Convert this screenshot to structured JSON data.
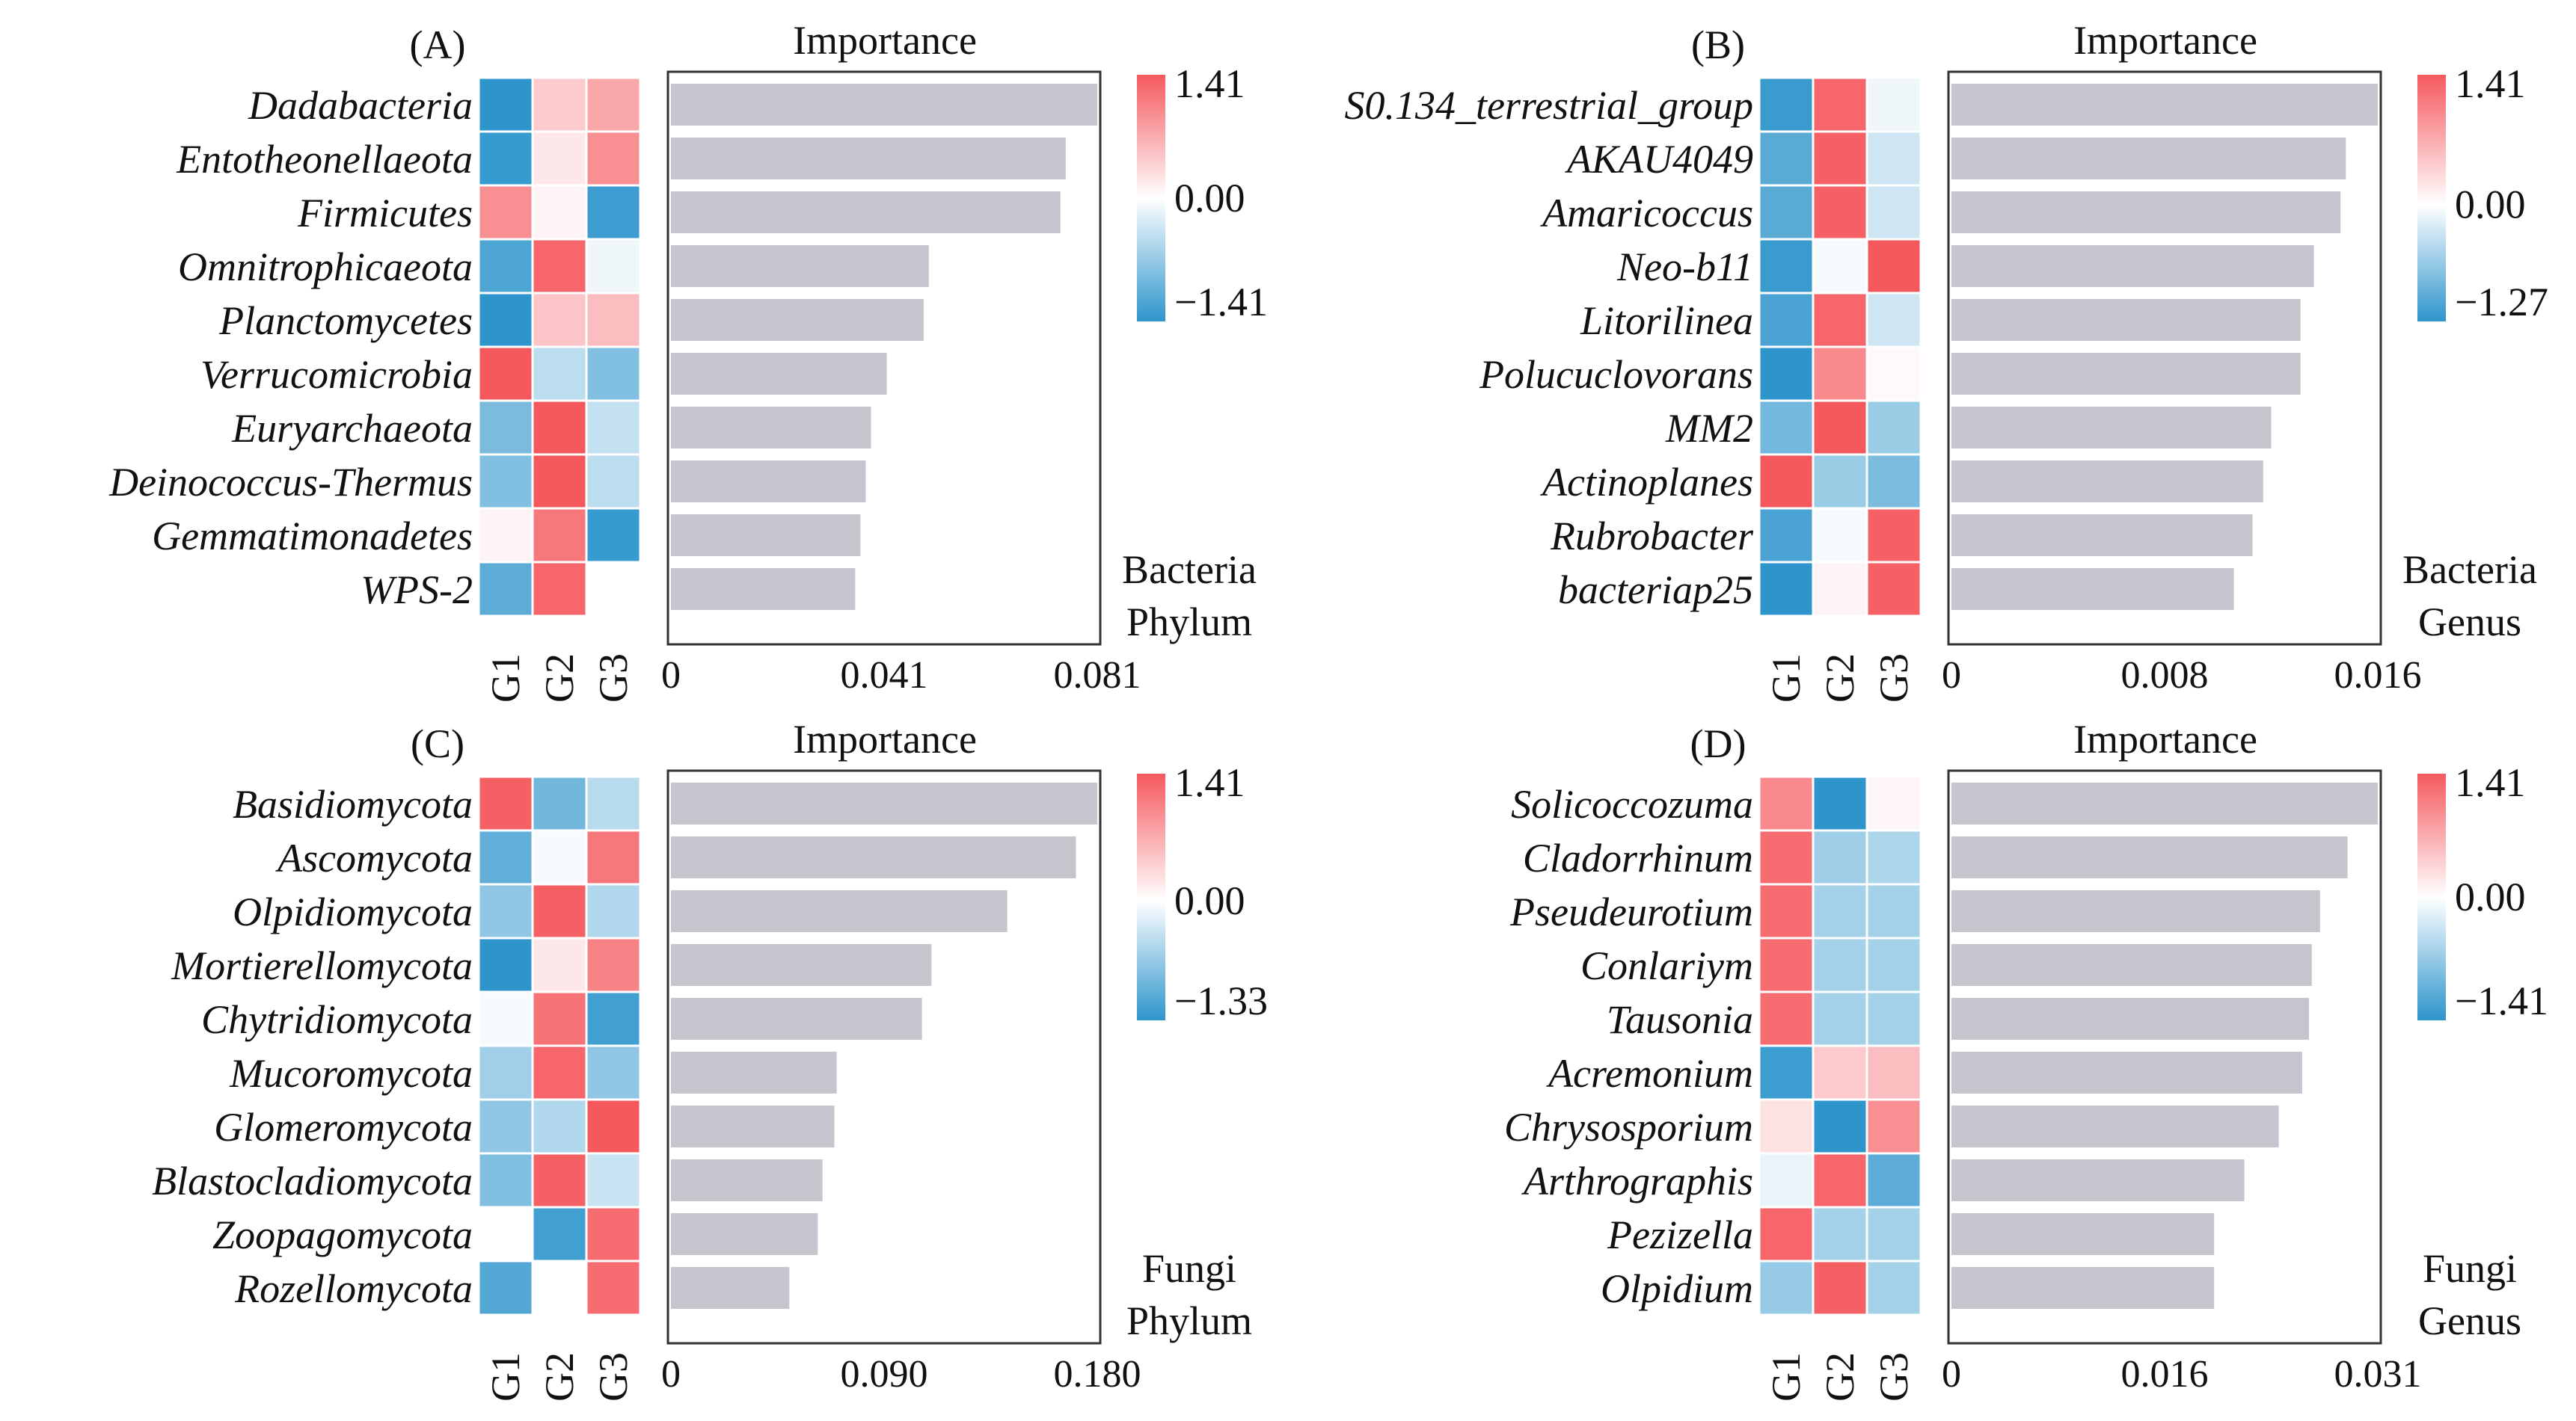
{
  "colors": {
    "bar": "#c5c5ce",
    "heat_high": "#f5595e",
    "heat_mid": "#ffffff",
    "heat_low": "#2e95cc",
    "frame": "#333333",
    "text": "#111111"
  },
  "groups": [
    "G1",
    "G2",
    "G3"
  ],
  "chart_data": [
    {
      "panel": "(A)",
      "type": "bar",
      "orientation": "horizontal",
      "title": "Importance",
      "caption": [
        "Bacteria",
        "Phylum"
      ],
      "categories": [
        "Dadabacteria",
        "Entotheonellaeota",
        "Firmicutes",
        "Omnitrophicaeota",
        "Planctomycetes",
        "Verrucomicrobia",
        "Euryarchaeota",
        "Deinococcus-Thermus",
        "Gemmatimonadetes",
        "WPS-2"
      ],
      "values": [
        0.081,
        0.075,
        0.074,
        0.049,
        0.048,
        0.041,
        0.038,
        0.037,
        0.036,
        0.035
      ],
      "xlim": [
        0,
        0.081
      ],
      "xticks": [
        "0",
        "0.041",
        "0.081"
      ],
      "heatmap": {
        "columns": [
          "G1",
          "G2",
          "G3"
        ],
        "rows": [
          [
            -1.41,
            0.45,
            0.75
          ],
          [
            -1.35,
            0.2,
            0.95
          ],
          [
            0.95,
            0.1,
            -1.3
          ],
          [
            -1.2,
            1.3,
            -0.1
          ],
          [
            -1.41,
            0.5,
            0.55
          ],
          [
            1.41,
            -0.45,
            -0.85
          ],
          [
            -0.9,
            1.41,
            -0.4
          ],
          [
            -0.85,
            1.41,
            -0.45
          ],
          [
            0.1,
            1.15,
            -1.35
          ],
          [
            -1.1,
            1.3,
            0.0
          ]
        ],
        "scale": {
          "max": 1.41,
          "mid": 0.0,
          "min": -1.41
        },
        "scale_labels": [
          "1.41",
          "0.00",
          "−1.41"
        ]
      }
    },
    {
      "panel": "(B)",
      "type": "bar",
      "orientation": "horizontal",
      "title": "Importance",
      "caption": [
        "Bacteria",
        "Genus"
      ],
      "categories": [
        "S0.134_terrestrial_group",
        "AKAU4049",
        "Amaricoccus",
        "Neo-b11",
        "Litorilinea",
        "Polucuclovorans",
        "MM2",
        "Actinoplanes",
        "Rubrobacter",
        "bacteriap25"
      ],
      "values": [
        0.016,
        0.0148,
        0.0146,
        0.0136,
        0.0131,
        0.0131,
        0.012,
        0.0117,
        0.0113,
        0.0106
      ],
      "xlim": [
        0,
        0.016
      ],
      "xticks": [
        "0",
        "0.008",
        "0.016"
      ],
      "heatmap": {
        "columns": [
          "G1",
          "G2",
          "G3"
        ],
        "rows": [
          [
            -1.2,
            1.3,
            -0.1
          ],
          [
            -1.0,
            1.35,
            -0.3
          ],
          [
            -1.0,
            1.35,
            -0.3
          ],
          [
            -1.2,
            -0.05,
            1.41
          ],
          [
            -1.1,
            1.3,
            -0.3
          ],
          [
            -1.27,
            1.0,
            0.05
          ],
          [
            -0.85,
            1.41,
            -0.6
          ],
          [
            1.41,
            -0.6,
            -0.8
          ],
          [
            -1.1,
            -0.05,
            1.35
          ],
          [
            -1.27,
            0.1,
            1.35
          ]
        ],
        "scale": {
          "max": 1.41,
          "mid": 0.0,
          "min": -1.27
        },
        "scale_labels": [
          "1.41",
          "0.00",
          "−1.27"
        ]
      }
    },
    {
      "panel": "(C)",
      "type": "bar",
      "orientation": "horizontal",
      "title": "Importance",
      "caption": [
        "Fungi",
        "Phylum"
      ],
      "categories": [
        "Basidiomycota",
        "Ascomycota",
        "Olpidiomycota",
        "Mortierellomycota",
        "Chytridiomycota",
        "Mucoromycota",
        "Glomeromycota",
        "Blastocladiomycota",
        "Zoopagomycota",
        "Rozellomycota"
      ],
      "values": [
        0.18,
        0.171,
        0.142,
        0.11,
        0.106,
        0.07,
        0.069,
        0.064,
        0.062,
        0.05
      ],
      "xlim": [
        0,
        0.18
      ],
      "xticks": [
        "0",
        "0.090",
        "0.180"
      ],
      "heatmap": {
        "columns": [
          "G1",
          "G2",
          "G3"
        ],
        "rows": [
          [
            1.35,
            -0.9,
            -0.45
          ],
          [
            -1.0,
            -0.05,
            1.15
          ],
          [
            -0.7,
            1.35,
            -0.5
          ],
          [
            -1.33,
            0.2,
            1.05
          ],
          [
            -0.05,
            1.2,
            -1.2
          ],
          [
            -0.6,
            1.3,
            -0.7
          ],
          [
            -0.7,
            -0.5,
            1.41
          ],
          [
            -0.8,
            1.35,
            -0.35
          ],
          [
            0.0,
            -1.2,
            1.25
          ],
          [
            -1.1,
            0.0,
            1.25
          ]
        ],
        "scale": {
          "max": 1.41,
          "mid": 0.0,
          "min": -1.33
        },
        "scale_labels": [
          "1.41",
          "0.00",
          "−1.33"
        ]
      }
    },
    {
      "panel": "(D)",
      "type": "bar",
      "orientation": "horizontal",
      "title": "Importance",
      "caption": [
        "Fungi",
        "Genus"
      ],
      "categories": [
        "Solicoccozuma",
        "Cladorrhinum",
        "Pseudeurotium",
        "Conlariym",
        "Tausonia",
        "Acremonium",
        "Chrysosporium",
        "Arthrographis",
        "Pezizella",
        "Olpidium"
      ],
      "values": [
        0.031,
        0.0288,
        0.0268,
        0.0262,
        0.026,
        0.0255,
        0.0238,
        0.0213,
        0.0191,
        0.0191
      ],
      "xlim": [
        0,
        0.031
      ],
      "xticks": [
        "0",
        "0.016",
        "0.031"
      ],
      "heatmap": {
        "columns": [
          "G1",
          "G2",
          "G3"
        ],
        "rows": [
          [
            1.0,
            -1.41,
            0.08
          ],
          [
            1.25,
            -0.65,
            -0.55
          ],
          [
            1.25,
            -0.6,
            -0.6
          ],
          [
            1.25,
            -0.6,
            -0.6
          ],
          [
            1.25,
            -0.6,
            -0.6
          ],
          [
            -1.3,
            0.45,
            0.55
          ],
          [
            0.25,
            -1.41,
            0.95
          ],
          [
            -0.15,
            1.3,
            -1.1
          ],
          [
            1.3,
            -0.6,
            -0.6
          ],
          [
            -0.7,
            1.35,
            -0.6
          ]
        ],
        "scale": {
          "max": 1.41,
          "mid": 0.0,
          "min": -1.41
        },
        "scale_labels": [
          "1.41",
          "0.00",
          "−1.41"
        ]
      }
    }
  ]
}
